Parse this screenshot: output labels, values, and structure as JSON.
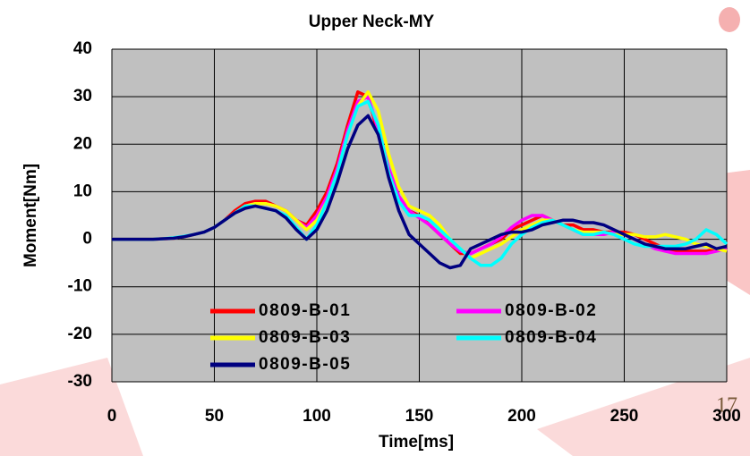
{
  "chart_data": {
    "type": "line",
    "title": "Upper Neck-MY",
    "x_label": "Time[ms]",
    "y_label": "Moment[Nm]",
    "x": [
      0,
      5,
      10,
      15,
      20,
      25,
      30,
      35,
      40,
      45,
      50,
      55,
      60,
      65,
      70,
      75,
      80,
      85,
      90,
      95,
      100,
      105,
      110,
      115,
      120,
      125,
      130,
      135,
      140,
      145,
      150,
      155,
      160,
      165,
      170,
      175,
      180,
      185,
      190,
      195,
      200,
      205,
      210,
      215,
      220,
      225,
      230,
      235,
      240,
      245,
      250,
      255,
      260,
      265,
      270,
      275,
      280,
      285,
      290,
      295,
      300
    ],
    "series": [
      {
        "name": "0809-B-01",
        "color": "#ff0000",
        "values": [
          0,
          0,
          0,
          0,
          0,
          0.1,
          0.2,
          0.5,
          1,
          1.5,
          2.5,
          4,
          6,
          7.5,
          8,
          8,
          7,
          6,
          4,
          3,
          6,
          10,
          16,
          24,
          31,
          30,
          22,
          14,
          9,
          6,
          5,
          3,
          1,
          -1,
          -3,
          -3,
          -2,
          -1,
          0,
          2,
          3,
          4,
          5,
          4,
          3,
          3,
          2,
          2,
          1.5,
          1.5,
          1.5,
          1,
          0,
          -1,
          -2,
          -2.5,
          -2.5,
          -2.5,
          -2.5,
          -2,
          -2
        ]
      },
      {
        "name": "0809-B-02",
        "color": "#ff00ff",
        "values": [
          0,
          0,
          0,
          0,
          0,
          0.1,
          0.2,
          0.5,
          1,
          1.5,
          2.5,
          4,
          5.5,
          7,
          7.5,
          7.5,
          7,
          6,
          4,
          2.5,
          5,
          9,
          15,
          23,
          29,
          30,
          23,
          15,
          9,
          6,
          4.5,
          3,
          1,
          -1,
          -2.5,
          -3,
          -2,
          -1,
          0.5,
          2.5,
          4,
          5,
          5,
          4,
          3,
          2,
          1,
          1,
          1,
          1.5,
          1,
          0,
          -1,
          -2,
          -2.5,
          -3,
          -3,
          -3,
          -3,
          -2.5,
          -2
        ]
      },
      {
        "name": "0809-B-03",
        "color": "#ffff00",
        "values": [
          0,
          0,
          0,
          0,
          0,
          0.1,
          0.2,
          0.5,
          1,
          1.5,
          2.5,
          4,
          5.5,
          7,
          7.5,
          7.5,
          7,
          6,
          4,
          2,
          4,
          8,
          14,
          22,
          28,
          31,
          27,
          18,
          11,
          7,
          6,
          5,
          3,
          0,
          -2,
          -4,
          -3,
          -2,
          -1,
          0.5,
          2,
          3,
          4,
          4,
          3,
          2,
          1.5,
          1.5,
          1.5,
          1,
          1,
          1,
          0.5,
          0.5,
          1,
          0.5,
          0,
          -1,
          -1.5,
          -2,
          -2.5
        ]
      },
      {
        "name": "0809-B-04",
        "color": "#00ffff",
        "values": [
          0,
          0,
          0,
          0,
          0,
          0.1,
          0.3,
          0.6,
          1,
          1.5,
          2.5,
          4,
          5.5,
          7,
          7,
          6.5,
          6,
          5,
          2.5,
          0,
          3,
          8,
          14,
          22,
          28,
          29,
          24,
          14,
          8,
          5,
          5,
          4,
          2,
          0,
          -2,
          -4,
          -5.5,
          -5.5,
          -4,
          -1,
          1,
          2.5,
          3.5,
          4,
          3,
          2,
          1,
          1,
          1.5,
          1,
          0,
          -1,
          -1.5,
          -1.5,
          -1.5,
          -1.5,
          -1,
          0,
          2,
          1,
          -1
        ]
      },
      {
        "name": "0809-B-05",
        "color": "#000080",
        "values": [
          0,
          0,
          0,
          0,
          0,
          0.1,
          0.2,
          0.5,
          1,
          1.5,
          2.5,
          4,
          5.5,
          6.5,
          7,
          6.5,
          6,
          4.5,
          2,
          0,
          2,
          6,
          12,
          19,
          24,
          26,
          22,
          13,
          6,
          1,
          -1,
          -3,
          -5,
          -6,
          -5.5,
          -2,
          -1,
          0,
          1,
          1.5,
          1.5,
          2,
          3,
          3.5,
          4,
          4,
          3.5,
          3.5,
          3,
          2,
          1,
          0,
          -1,
          -1.5,
          -2,
          -2,
          -2,
          -1.5,
          -1,
          -2,
          -1.5
        ]
      }
    ],
    "xlim": [
      0,
      300
    ],
    "xticks": [
      0,
      50,
      100,
      150,
      200,
      250,
      300
    ],
    "ylim": [
      -30,
      40
    ],
    "yticks": [
      -30,
      -20,
      -10,
      0,
      10,
      20,
      30,
      40
    ],
    "grid": true,
    "background": "#c0c0c0"
  },
  "page_number": "17"
}
